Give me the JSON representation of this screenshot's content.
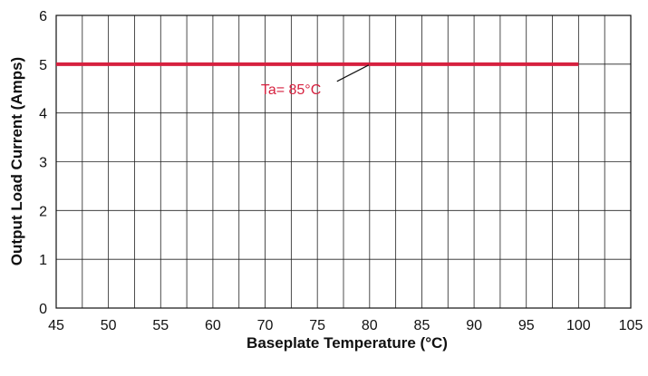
{
  "chart_data": {
    "type": "line",
    "title": "",
    "xlabel": "Baseplate Temperature  (°C)",
    "ylabel": "Output Load Current (Amps)",
    "xlim": [
      45,
      105
    ],
    "ylim": [
      0,
      6
    ],
    "x_ticks": [
      45,
      50,
      55,
      60,
      70,
      75,
      80,
      85,
      90,
      95,
      100,
      105
    ],
    "y_ticks": [
      0,
      1,
      2,
      3,
      4,
      5,
      6
    ],
    "x_tick_labels": [
      "45",
      "50",
      "55",
      "60",
      "70",
      "75",
      "80",
      "85",
      "90",
      "95",
      "100",
      "105"
    ],
    "y_tick_labels": [
      "0",
      "1",
      "2",
      "3",
      "4",
      "5",
      "6"
    ],
    "grid": true,
    "series": [
      {
        "name": "Ta= 85°C",
        "color": "#d6213f",
        "x": [
          45,
          100
        ],
        "y": [
          5,
          5
        ]
      }
    ],
    "annotations": [
      {
        "text": "Ta= 85°C",
        "series": 0,
        "points_to_x": 80,
        "points_to_y": 5,
        "color": "#d6213f"
      }
    ]
  }
}
